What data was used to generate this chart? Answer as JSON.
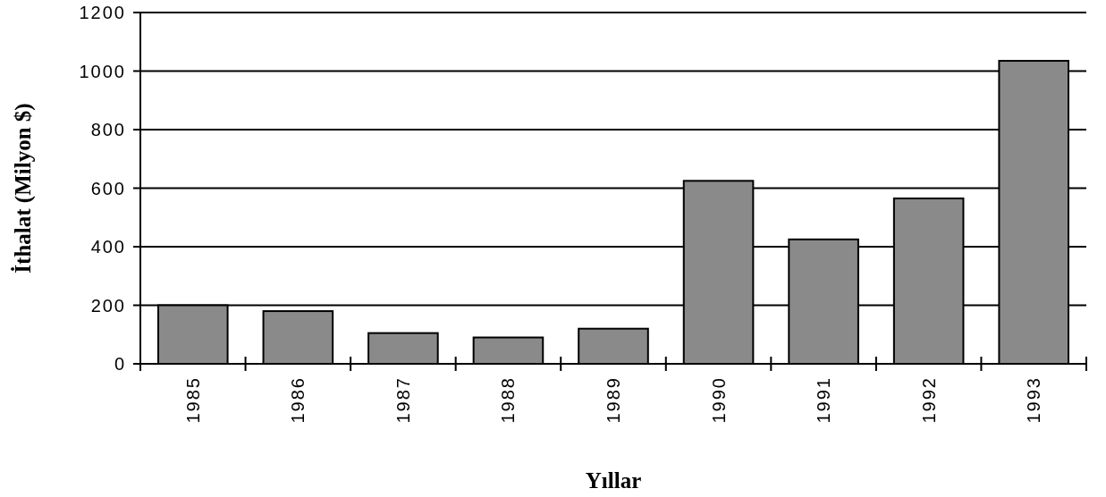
{
  "chart_data": {
    "type": "bar",
    "xlabel": "Yıllar",
    "ylabel": "İthalat  (Milyon $)",
    "categories": [
      "1985",
      "1986",
      "1987",
      "1988",
      "1989",
      "1990",
      "1991",
      "1992",
      "1993"
    ],
    "values": [
      200,
      180,
      105,
      90,
      120,
      625,
      425,
      565,
      1035
    ],
    "color": "#8a8a8a",
    "ylim": [
      0,
      1200
    ],
    "yticks": [
      0,
      200,
      400,
      600,
      800,
      1000,
      1200
    ],
    "grid": "y"
  }
}
